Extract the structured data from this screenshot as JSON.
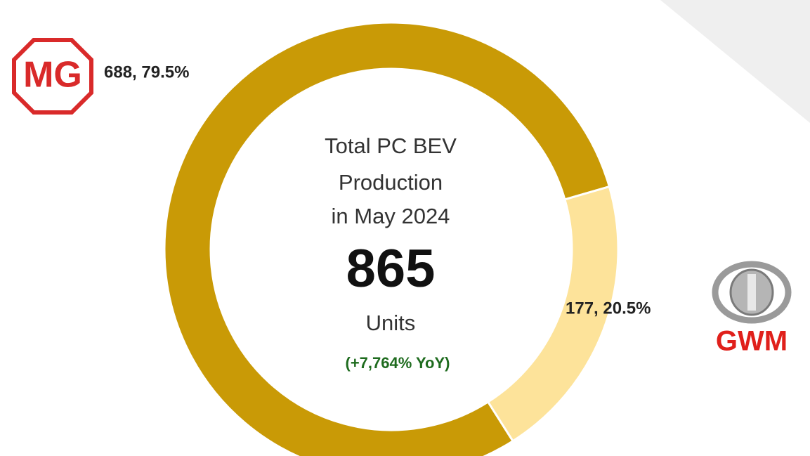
{
  "chart_data": {
    "type": "donut",
    "categories": [
      "MG",
      "GWM"
    ],
    "values": [
      688,
      177
    ],
    "value_labels": [
      "688, 79.5%",
      "177, 20.5%"
    ],
    "colors": [
      "#c99a06",
      "#fde39a"
    ],
    "center_lines": [
      "Total PC BEV",
      "Production",
      "in May 2024"
    ],
    "total": "865",
    "unit_label": "Units",
    "yoy": "(+7,764% YoY)"
  }
}
